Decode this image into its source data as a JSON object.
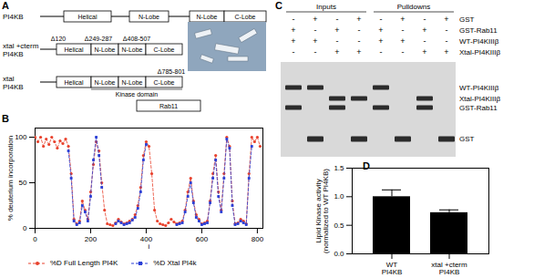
{
  "diagram": {
    "panel": "A",
    "constructs": [
      {
        "name": "PI4KB",
        "domains": [
          "Helical",
          "N-Lobe",
          "N-Lobe",
          "C-Lobe"
        ]
      },
      {
        "name": "xtal +cterm\nPI4KB",
        "domains": [
          "Helical",
          "N-Lobe",
          "N-Lobe",
          "C-Lobe"
        ],
        "deletions": [
          "Δ120",
          "Δ249-287",
          "Δ408-507"
        ]
      },
      {
        "name": "xtal\nPI4KB",
        "domains": [
          "Helical",
          "N-Lobe",
          "N-Lobe",
          "C-Lobe"
        ],
        "deletions": [
          "Δ785-801"
        ],
        "region": "Kinase domain"
      }
    ],
    "partner": "Rab11"
  },
  "gel": {
    "panel": "C",
    "groups": [
      "Inputs",
      "Pulldowns"
    ],
    "rows": [
      {
        "name": "GST",
        "signs": [
          "-",
          "+",
          "-",
          "+",
          "-",
          "+",
          "-",
          "+"
        ]
      },
      {
        "name": "GST-Rab11",
        "signs": [
          "+",
          "-",
          "+",
          "-",
          "+",
          "-",
          "+",
          "-"
        ]
      },
      {
        "name": "WT-PI4KIIIβ",
        "signs": [
          "+",
          "+",
          "-",
          "-",
          "+",
          "+",
          "-",
          "-"
        ]
      },
      {
        "name": "Xtal-PI4KIIIβ",
        "signs": [
          "-",
          "-",
          "+",
          "+",
          "-",
          "-",
          "+",
          "+"
        ]
      }
    ],
    "bands": [
      "WT-PI4KIIIβ",
      "Xtal-PI4KIIIβ",
      "GST-Rab11",
      "GST"
    ]
  },
  "chart_data": [
    {
      "panel": "B",
      "type": "line",
      "xlabel": "i",
      "ylabel": "% deuterium incorporation",
      "x": [
        0,
        10,
        20,
        30,
        40,
        50,
        60,
        70,
        80,
        90,
        100,
        110,
        120,
        130,
        140,
        150,
        160,
        170,
        180,
        190,
        200,
        210,
        220,
        230,
        240,
        250,
        260,
        270,
        280,
        290,
        300,
        310,
        320,
        330,
        340,
        350,
        360,
        370,
        380,
        390,
        400,
        410,
        420,
        430,
        440,
        450,
        460,
        470,
        480,
        490,
        500,
        510,
        520,
        530,
        540,
        550,
        560,
        570,
        580,
        590,
        600,
        610,
        620,
        630,
        640,
        650,
        660,
        670,
        680,
        690,
        700,
        710,
        720,
        730,
        740,
        750,
        760,
        770,
        780,
        790,
        800,
        810
      ],
      "series": [
        {
          "name": "%D Full Length PI4K",
          "color": "#e8412c",
          "marker": "circle",
          "line_style": "dashed",
          "values": [
            100,
            95,
            100,
            90,
            98,
            92,
            100,
            95,
            88,
            96,
            93,
            98,
            90,
            60,
            10,
            5,
            8,
            30,
            20,
            10,
            40,
            70,
            95,
            85,
            50,
            20,
            5,
            4,
            3,
            6,
            10,
            7,
            5,
            6,
            8,
            10,
            15,
            25,
            45,
            80,
            95,
            90,
            60,
            20,
            8,
            5,
            4,
            3,
            6,
            10,
            7,
            5,
            6,
            8,
            20,
            40,
            55,
            30,
            15,
            10,
            5,
            6,
            8,
            30,
            60,
            80,
            40,
            20,
            60,
            100,
            90,
            30,
            5,
            6,
            10,
            8,
            5,
            60,
            100,
            95,
            100,
            90
          ]
        },
        {
          "name": "%D Xtal PI4k",
          "color": "#2a3fd6",
          "marker": "square",
          "line_style": "dashed",
          "values": [
            null,
            null,
            null,
            null,
            null,
            null,
            null,
            null,
            null,
            null,
            null,
            null,
            85,
            55,
            8,
            4,
            6,
            25,
            18,
            8,
            35,
            75,
            100,
            80,
            45,
            null,
            null,
            null,
            null,
            5,
            8,
            6,
            4,
            5,
            6,
            9,
            12,
            22,
            40,
            75,
            92,
            null,
            null,
            null,
            null,
            null,
            null,
            null,
            null,
            null,
            null,
            4,
            5,
            6,
            18,
            35,
            50,
            28,
            12,
            8,
            4,
            5,
            6,
            28,
            55,
            75,
            35,
            18,
            55,
            98,
            88,
            25,
            4,
            5,
            8,
            6,
            4,
            55,
            90,
            null,
            null,
            null
          ]
        }
      ],
      "xlim": [
        0,
        820
      ],
      "xticks": [
        0,
        200,
        400,
        600,
        800
      ],
      "ylim": [
        0,
        110
      ],
      "yticks": [
        0,
        50,
        100
      ],
      "legend": "bottom"
    },
    {
      "panel": "D",
      "type": "bar",
      "categories": [
        "WT\nPI4KB",
        "xtal +cterm\nPI4KB"
      ],
      "values": [
        1.0,
        0.72
      ],
      "errors": [
        0.12,
        0.05
      ],
      "color": "#000000",
      "ylabel": "Lipid Kinase activity\n(normalized to WT PI4KB)",
      "ylim": [
        0,
        1.5
      ],
      "yticks": [
        {
          "value": 0,
          "label": "0.0"
        },
        {
          "value": 0.5,
          "label": "0.5"
        },
        {
          "value": 1,
          "label": "1.0"
        },
        {
          "value": 1.5,
          "label": "1.5"
        }
      ]
    }
  ]
}
